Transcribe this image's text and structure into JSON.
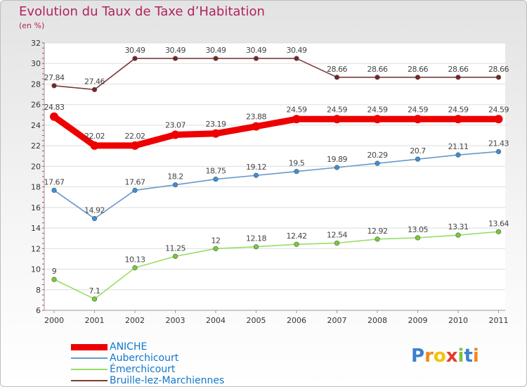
{
  "chart_data": {
    "type": "line",
    "title": "Evolution du Taux de Taxe d’Habitation",
    "subtitle": "(en %)",
    "xlabel": "",
    "ylabel": "",
    "categories": [
      "2000",
      "2001",
      "2002",
      "2003",
      "2004",
      "2005",
      "2006",
      "2007",
      "2008",
      "2009",
      "2010",
      "2011"
    ],
    "ylim": [
      6,
      32
    ],
    "yticks": [
      6,
      8,
      10,
      12,
      14,
      16,
      18,
      20,
      22,
      24,
      26,
      28,
      30,
      32
    ],
    "grid": "horizontal",
    "legend_position": "bottom-left",
    "series": [
      {
        "name": "ANICHE",
        "color": "#ee0000",
        "emphasis": "thick",
        "values": [
          24.83,
          22.02,
          22.02,
          23.07,
          23.19,
          23.88,
          24.59,
          24.59,
          24.59,
          24.59,
          24.59,
          24.59
        ],
        "labels": [
          "24.83",
          "22.02",
          "22.02",
          "23.07",
          "23.19",
          "23.88",
          "24.59",
          "24.59",
          "24.59",
          "24.59",
          "24.59",
          "24.59"
        ]
      },
      {
        "name": "Auberchicourt",
        "color": "#6699cc",
        "marker_color": "#3d8fd6",
        "values": [
          17.67,
          14.92,
          17.67,
          18.2,
          18.75,
          19.12,
          19.5,
          19.89,
          20.29,
          20.7,
          21.11,
          21.43
        ],
        "labels": [
          "17.67",
          "14.92",
          "17.67",
          "18.2",
          "18.75",
          "19.12",
          "19.5",
          "19.89",
          "20.29",
          "20.7",
          "21.11",
          "21.43"
        ]
      },
      {
        "name": "Émerchicourt",
        "color": "#99dd66",
        "marker_color": "#77cc33",
        "values": [
          9,
          7.1,
          10.13,
          11.25,
          12,
          12.18,
          12.42,
          12.54,
          12.92,
          13.05,
          13.31,
          13.64
        ],
        "labels": [
          "9",
          "7.1",
          "10.13",
          "11.25",
          "12",
          "12.18",
          "12.42",
          "12.54",
          "12.92",
          "13.05",
          "13.31",
          "13.64"
        ]
      },
      {
        "name": "Bruille-lez-Marchiennes",
        "color": "#7a3b3b",
        "marker_color": "#7a2424",
        "values": [
          27.84,
          27.46,
          30.49,
          30.49,
          30.49,
          30.49,
          30.49,
          28.66,
          28.66,
          28.66,
          28.66,
          28.66
        ],
        "labels": [
          "27.84",
          "27.46",
          "30.49",
          "30.49",
          "30.49",
          "30.49",
          "30.49",
          "28.66",
          "28.66",
          "28.66",
          "28.66",
          "28.66"
        ]
      }
    ]
  },
  "logo": {
    "text": "Proxiti",
    "letters": [
      "P",
      "r",
      "o",
      "x",
      "i",
      "t",
      "i"
    ],
    "letter_colors": [
      "#3b7fd0",
      "#f08a1c",
      "#f5c200",
      "#e63b2e",
      "#7cc242",
      "#3b7fd0",
      "#f08a1c"
    ]
  }
}
